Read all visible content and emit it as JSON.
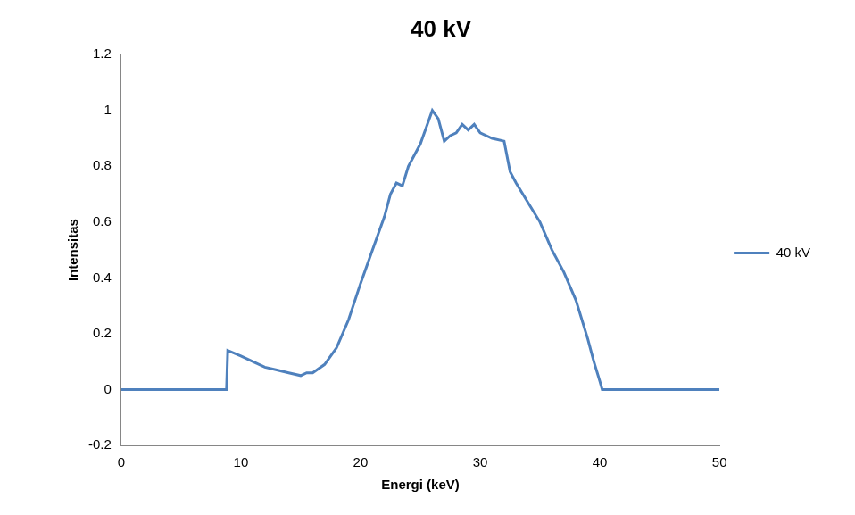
{
  "chart_data": {
    "type": "line",
    "title": "40 kV",
    "x_label": "Energi (keV)",
    "y_label": "Intensitas",
    "x": [
      0,
      8.8,
      8.9,
      10,
      11,
      12,
      13,
      14,
      15,
      15.5,
      16,
      17,
      18,
      19,
      20,
      21,
      22,
      22.5,
      23,
      23.5,
      24,
      25,
      25.5,
      26,
      26.5,
      27,
      27.5,
      28,
      28.5,
      29,
      29.5,
      30,
      31,
      32,
      32.5,
      33,
      34,
      35,
      36,
      37,
      38,
      39,
      39.5,
      40,
      40.2,
      45,
      50
    ],
    "series": [
      {
        "name": "40 kV",
        "color": "#4f81bd",
        "marker": "none",
        "line_style": "solid",
        "values": [
          0,
          0,
          0.14,
          0.12,
          0.1,
          0.08,
          0.07,
          0.06,
          0.05,
          0.06,
          0.06,
          0.09,
          0.15,
          0.25,
          0.38,
          0.5,
          0.62,
          0.7,
          0.74,
          0.73,
          0.8,
          0.88,
          0.94,
          1.0,
          0.97,
          0.89,
          0.91,
          0.92,
          0.95,
          0.93,
          0.95,
          0.92,
          0.9,
          0.89,
          0.78,
          0.74,
          0.67,
          0.6,
          0.5,
          0.42,
          0.32,
          0.18,
          0.1,
          0.03,
          0,
          0,
          0
        ]
      }
    ],
    "xlim": [
      0,
      50
    ],
    "xticks": [
      0,
      10,
      20,
      30,
      40,
      50
    ],
    "ylim": [
      -0.2,
      1.2
    ],
    "yticks": [
      -0.2,
      0,
      0.2,
      0.4,
      0.6,
      0.8,
      1,
      1.2
    ],
    "grid": false,
    "legend": "right"
  }
}
